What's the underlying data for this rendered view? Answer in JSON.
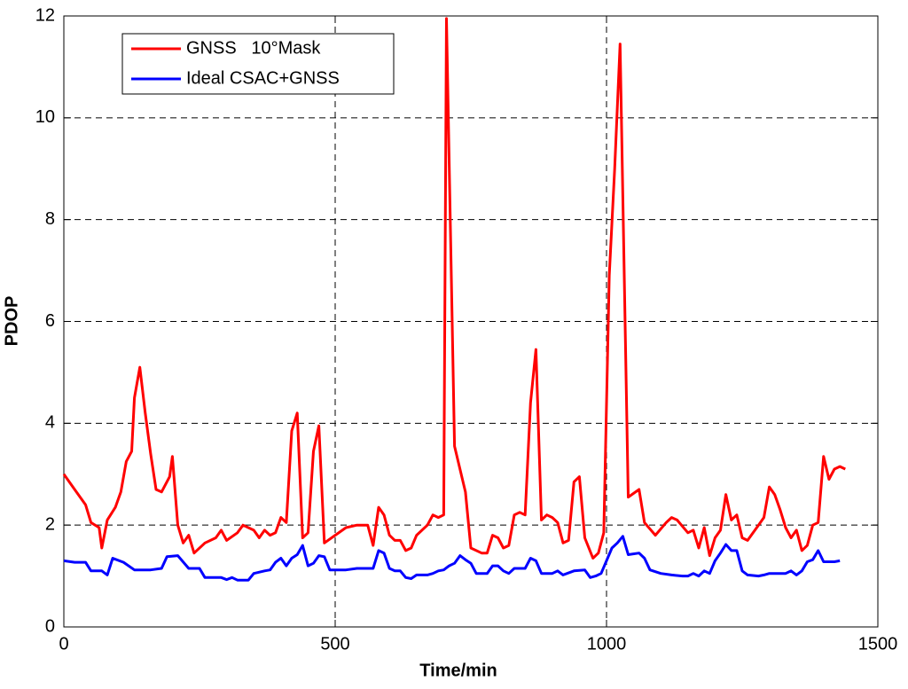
{
  "chart_data": {
    "type": "line",
    "xlabel": "Time/min",
    "ylabel": "PDOP",
    "xlim": [
      0,
      1500
    ],
    "xticks": [
      0,
      500,
      1000,
      1500
    ],
    "ylim": [
      0,
      12
    ],
    "yticks": [
      0,
      2,
      4,
      6,
      8,
      10,
      12
    ],
    "grid": true,
    "legend": "upper left",
    "series": [
      {
        "name": "GNSS   10°Mask",
        "color": "#ff0000",
        "x": [
          0,
          20,
          40,
          50,
          65,
          70,
          80,
          95,
          105,
          115,
          125,
          130,
          140,
          150,
          160,
          170,
          180,
          195,
          200,
          210,
          220,
          230,
          240,
          260,
          280,
          290,
          300,
          320,
          330,
          350,
          360,
          370,
          380,
          390,
          400,
          410,
          420,
          430,
          440,
          450,
          460,
          470,
          480,
          500,
          520,
          540,
          560,
          570,
          580,
          590,
          600,
          610,
          620,
          630,
          640,
          650,
          670,
          680,
          690,
          700,
          705,
          720,
          740,
          750,
          770,
          780,
          790,
          800,
          810,
          820,
          830,
          840,
          850,
          860,
          870,
          880,
          890,
          900,
          910,
          920,
          930,
          940,
          950,
          960,
          975,
          985,
          995,
          1005,
          1015,
          1025,
          1040,
          1060,
          1070,
          1090,
          1110,
          1120,
          1130,
          1150,
          1160,
          1170,
          1180,
          1190,
          1200,
          1210,
          1220,
          1230,
          1240,
          1250,
          1260,
          1280,
          1290,
          1300,
          1310,
          1320,
          1330,
          1340,
          1350,
          1360,
          1370,
          1380,
          1390,
          1400,
          1410,
          1420,
          1430,
          1440
        ],
        "values": [
          3.0,
          2.7,
          2.4,
          2.05,
          1.95,
          1.55,
          2.1,
          2.35,
          2.65,
          3.25,
          3.45,
          4.5,
          5.1,
          4.2,
          3.4,
          2.7,
          2.65,
          2.95,
          3.35,
          2.0,
          1.65,
          1.8,
          1.45,
          1.65,
          1.75,
          1.9,
          1.7,
          1.85,
          2.0,
          1.9,
          1.75,
          1.9,
          1.8,
          1.85,
          2.15,
          2.05,
          3.85,
          4.2,
          1.75,
          1.85,
          3.45,
          3.95,
          1.65,
          1.8,
          1.95,
          2.0,
          2.0,
          1.6,
          2.35,
          2.2,
          1.8,
          1.7,
          1.7,
          1.5,
          1.55,
          1.8,
          2.0,
          2.2,
          2.15,
          2.2,
          11.95,
          3.55,
          2.65,
          1.55,
          1.45,
          1.45,
          1.8,
          1.75,
          1.55,
          1.6,
          2.2,
          2.25,
          2.2,
          4.4,
          5.45,
          2.1,
          2.2,
          2.15,
          2.05,
          1.65,
          1.7,
          2.85,
          2.95,
          1.75,
          1.35,
          1.45,
          1.85,
          6.9,
          9.0,
          11.45,
          2.55,
          2.7,
          2.05,
          1.8,
          2.05,
          2.15,
          2.1,
          1.85,
          1.9,
          1.55,
          1.95,
          1.4,
          1.75,
          1.9,
          2.6,
          2.1,
          2.2,
          1.75,
          1.7,
          2.0,
          2.15,
          2.75,
          2.6,
          2.3,
          1.95,
          1.75,
          1.9,
          1.5,
          1.6,
          2.0,
          2.05,
          3.35,
          2.9,
          3.1,
          3.15,
          3.1
        ]
      },
      {
        "name": "Ideal CSAC+GNSS",
        "color": "#0000ff",
        "x": [
          0,
          20,
          40,
          50,
          70,
          80,
          90,
          110,
          130,
          160,
          180,
          190,
          210,
          230,
          250,
          260,
          290,
          300,
          310,
          320,
          340,
          350,
          370,
          380,
          390,
          400,
          410,
          420,
          430,
          440,
          450,
          460,
          470,
          480,
          490,
          520,
          540,
          560,
          570,
          580,
          590,
          600,
          610,
          620,
          630,
          640,
          650,
          670,
          680,
          690,
          700,
          710,
          720,
          730,
          740,
          750,
          760,
          780,
          790,
          800,
          810,
          820,
          830,
          850,
          860,
          870,
          880,
          900,
          910,
          920,
          940,
          960,
          970,
          980,
          990,
          1000,
          1010,
          1020,
          1030,
          1040,
          1060,
          1070,
          1080,
          1100,
          1120,
          1140,
          1150,
          1160,
          1170,
          1180,
          1190,
          1200,
          1210,
          1220,
          1230,
          1240,
          1250,
          1260,
          1280,
          1290,
          1300,
          1320,
          1330,
          1340,
          1350,
          1360,
          1370,
          1380,
          1390,
          1400,
          1420,
          1430
        ],
        "values": [
          1.3,
          1.27,
          1.27,
          1.1,
          1.1,
          1.02,
          1.35,
          1.27,
          1.12,
          1.12,
          1.15,
          1.38,
          1.4,
          1.15,
          1.15,
          0.97,
          0.97,
          0.93,
          0.97,
          0.92,
          0.92,
          1.05,
          1.1,
          1.12,
          1.27,
          1.35,
          1.2,
          1.35,
          1.42,
          1.6,
          1.2,
          1.25,
          1.4,
          1.38,
          1.12,
          1.12,
          1.15,
          1.15,
          1.15,
          1.5,
          1.45,
          1.15,
          1.1,
          1.1,
          0.97,
          0.95,
          1.02,
          1.02,
          1.05,
          1.1,
          1.12,
          1.2,
          1.25,
          1.4,
          1.32,
          1.25,
          1.05,
          1.05,
          1.2,
          1.2,
          1.1,
          1.05,
          1.15,
          1.15,
          1.35,
          1.3,
          1.05,
          1.05,
          1.1,
          1.02,
          1.1,
          1.12,
          0.97,
          1.0,
          1.05,
          1.3,
          1.55,
          1.65,
          1.78,
          1.42,
          1.45,
          1.35,
          1.12,
          1.05,
          1.02,
          1.0,
          1.0,
          1.05,
          1.0,
          1.1,
          1.05,
          1.3,
          1.45,
          1.62,
          1.5,
          1.5,
          1.1,
          1.02,
          1.0,
          1.02,
          1.05,
          1.05,
          1.05,
          1.1,
          1.02,
          1.1,
          1.28,
          1.32,
          1.5,
          1.28,
          1.28,
          1.3
        ]
      }
    ]
  }
}
